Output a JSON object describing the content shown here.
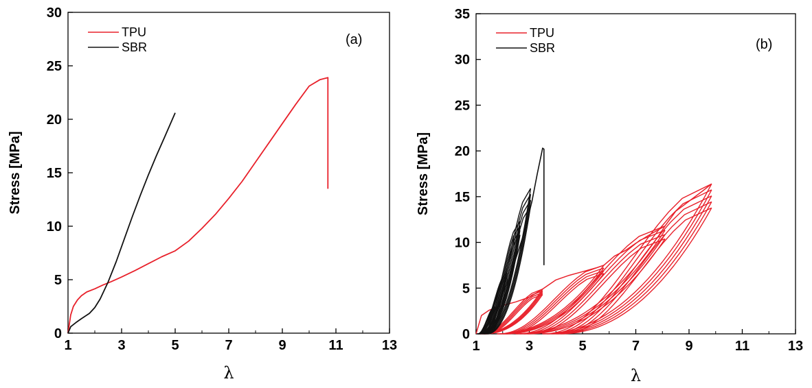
{
  "chart_data": [
    {
      "type": "line",
      "panel_label": "(a)",
      "xlabel": "λ",
      "ylabel": "Stress [MPa]",
      "xlim": [
        1,
        13
      ],
      "ylim": [
        0,
        30
      ],
      "xticks": [
        1,
        3,
        5,
        7,
        9,
        11,
        13
      ],
      "yticks": [
        0,
        5,
        10,
        15,
        20,
        25,
        30
      ],
      "legend_position": "top-left",
      "series": [
        {
          "name": "TPU",
          "color": "#e8202a",
          "x": [
            1,
            1.1,
            1.2,
            1.35,
            1.5,
            1.7,
            2.0,
            2.3,
            2.6,
            3.0,
            3.5,
            4.0,
            4.5,
            5.0,
            5.5,
            6.0,
            6.5,
            7.0,
            7.5,
            8.0,
            8.5,
            9.0,
            9.5,
            10.0,
            10.4,
            10.7,
            10.7
          ],
          "y": [
            0,
            1.7,
            2.5,
            3.1,
            3.5,
            3.85,
            4.15,
            4.5,
            4.8,
            5.25,
            5.85,
            6.5,
            7.15,
            7.7,
            8.6,
            9.8,
            11.1,
            12.6,
            14.2,
            16.0,
            17.8,
            19.6,
            21.4,
            23.1,
            23.7,
            23.9,
            13.5
          ]
        },
        {
          "name": "SBR",
          "color": "#111111",
          "x": [
            1,
            1.1,
            1.3,
            1.5,
            1.8,
            2.0,
            2.2,
            2.5,
            2.8,
            3.1,
            3.4,
            3.7,
            4.0,
            4.3,
            4.6,
            5.0
          ],
          "y": [
            0,
            0.6,
            1.0,
            1.35,
            1.85,
            2.4,
            3.2,
            4.8,
            6.7,
            8.8,
            10.9,
            12.9,
            14.8,
            16.6,
            18.3,
            20.6
          ]
        }
      ]
    },
    {
      "type": "line",
      "panel_label": "(b)",
      "xlabel": "λ",
      "ylabel": "Stress [MPa]",
      "xlim": [
        1,
        13
      ],
      "ylim": [
        0,
        35
      ],
      "xticks": [
        1,
        3,
        5,
        7,
        9,
        11,
        13
      ],
      "yticks": [
        0,
        5,
        10,
        15,
        20,
        25,
        30,
        35
      ],
      "legend_position": "top-left",
      "series": [
        {
          "name": "TPU",
          "color": "#e8202a",
          "loops": [
            {
              "peak_x": 3.5,
              "peak_y": 4.9,
              "min_x": 1.15,
              "cycles": 4
            },
            {
              "peak_x": 5.8,
              "peak_y": 7.5,
              "min_x": 1.8,
              "cycles": 4
            },
            {
              "peak_x": 8.1,
              "peak_y": 11.8,
              "min_x": 2.5,
              "cycles": 4
            },
            {
              "peak_x": 9.85,
              "peak_y": 16.4,
              "min_x": 3.5,
              "cycles": 5
            }
          ],
          "envelope_x": [
            1.0,
            1.2,
            1.5,
            2.0,
            2.5,
            3.0,
            3.5,
            4.0,
            4.5,
            5.0,
            5.5,
            5.8,
            6.2,
            6.6,
            7.0,
            7.5,
            8.1,
            8.5,
            9.0,
            9.5,
            9.85
          ],
          "envelope_y": [
            0,
            2.0,
            2.6,
            3.1,
            3.5,
            4.0,
            4.9,
            5.9,
            6.4,
            6.8,
            7.2,
            7.5,
            8.5,
            9.1,
            9.9,
            10.8,
            11.8,
            13.4,
            14.5,
            15.6,
            16.4
          ]
        },
        {
          "name": "SBR",
          "color": "#111111",
          "loops": [
            {
              "peak_x": 1.7,
              "peak_y": 3.0,
              "min_x": 1.05,
              "cycles": 3
            },
            {
              "peak_x": 2.15,
              "peak_y": 6.7,
              "min_x": 1.1,
              "cycles": 3
            },
            {
              "peak_x": 2.65,
              "peak_y": 12.3,
              "min_x": 1.2,
              "cycles": 4
            },
            {
              "peak_x": 3.05,
              "peak_y": 15.9,
              "min_x": 1.3,
              "cycles": 4
            }
          ],
          "final_x": [
            1.3,
            1.8,
            2.3,
            2.8,
            3.1,
            3.3,
            3.5,
            3.55,
            3.55
          ],
          "final_y": [
            0.5,
            3.0,
            6.5,
            11.0,
            14.5,
            17.5,
            20.3,
            20.2,
            7.5
          ]
        }
      ]
    }
  ]
}
